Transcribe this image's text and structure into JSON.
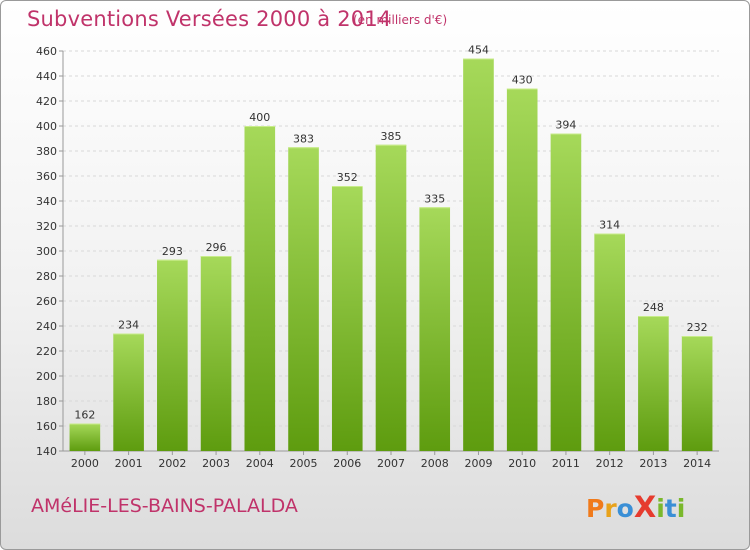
{
  "header": {
    "title": "Subventions Versées 2000 à 2014",
    "unit": "(en milliers d'€)"
  },
  "footer": {
    "commune": "AMéLIE-LES-BAINS-PALALDA",
    "logo_text": "ProXiti"
  },
  "colors": {
    "accent": "#c0336a",
    "bar_top": "#a6d95a",
    "bar_bottom": "#5e9c0f"
  },
  "chart_data": {
    "type": "bar",
    "title": "Subventions Versées 2000 à 2014",
    "subtitle": "(en milliers d'€)",
    "xlabel": "",
    "ylabel": "",
    "ylim": [
      140,
      460
    ],
    "ytick_step": 20,
    "grid": true,
    "categories": [
      "2000",
      "2001",
      "2002",
      "2003",
      "2004",
      "2005",
      "2006",
      "2007",
      "2008",
      "2009",
      "2010",
      "2011",
      "2012",
      "2013",
      "2014"
    ],
    "values": [
      162,
      234,
      293,
      296,
      400,
      383,
      352,
      385,
      335,
      454,
      430,
      394,
      314,
      248,
      232
    ]
  }
}
